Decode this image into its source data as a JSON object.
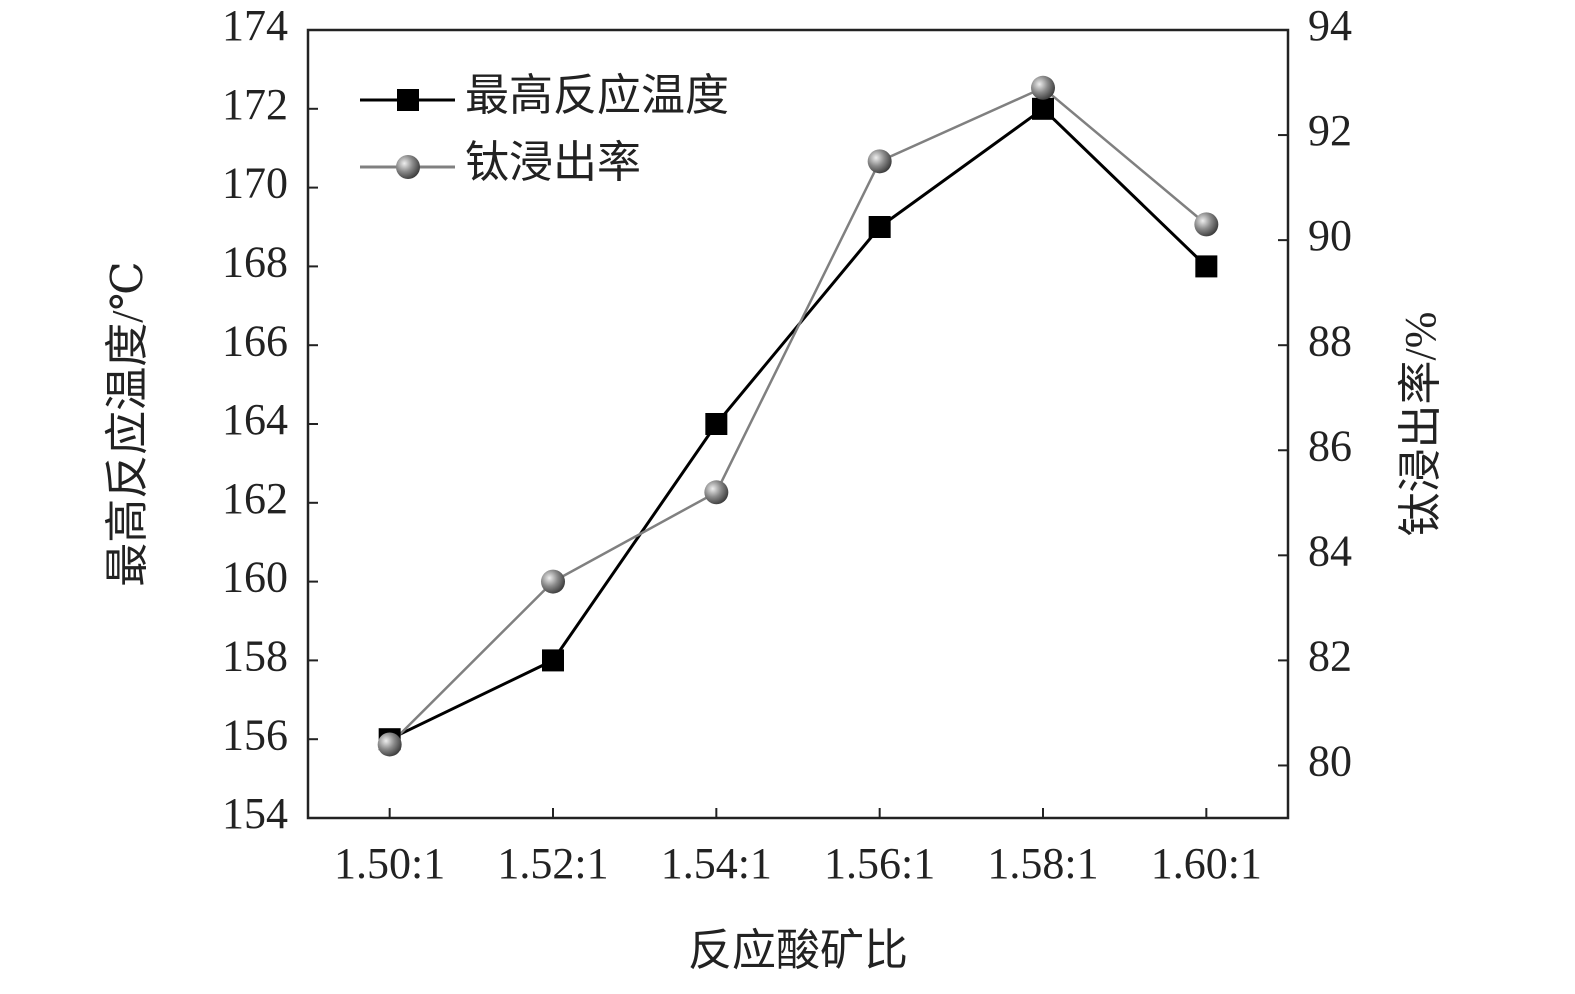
{
  "chart_data": {
    "type": "line",
    "x_label": "反应酸矿比",
    "y_label": "最高反应温度/℃",
    "y2_label": "钛浸出率/%",
    "categories": [
      "1.50:1",
      "1.52:1",
      "1.54:1",
      "1.56:1",
      "1.58:1",
      "1.60:1"
    ],
    "series": [
      {
        "name": "最高反应温度",
        "color": "#000000",
        "marker": "square",
        "values": [
          156,
          158,
          164,
          169,
          172,
          168
        ]
      },
      {
        "name": "钛浸出率",
        "color": "#808080",
        "marker": "sphere",
        "axis": "y2",
        "values": [
          80.4,
          83.5,
          85.2,
          91.5,
          92.9,
          90.3
        ]
      }
    ],
    "ylim": [
      154,
      174
    ],
    "yticks": [
      154,
      156,
      158,
      160,
      162,
      164,
      166,
      168,
      170,
      172,
      174
    ],
    "y2lim": [
      79,
      94
    ],
    "y2ticks": [
      80,
      82,
      84,
      86,
      88,
      90,
      92,
      94
    ],
    "legend": "upper left"
  }
}
